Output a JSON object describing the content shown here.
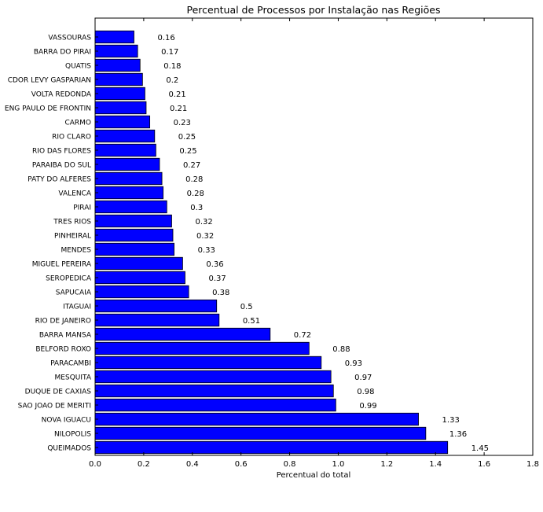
{
  "chart_data": {
    "type": "bar",
    "orientation": "horizontal",
    "title": "Percentual de Processos por Instalação nas Regiões",
    "xlabel": "Percentual do total",
    "ylabel": "",
    "xlim": [
      0,
      1.8
    ],
    "xticks": [
      "0.0",
      "0.2",
      "0.4",
      "0.6",
      "0.8",
      "1.0",
      "1.2",
      "1.4",
      "1.6",
      "1.8"
    ],
    "grid": false,
    "bar_color": "#0000ff",
    "categories": [
      "VASSOURAS",
      "BARRA DO PIRAI",
      "QUATIS",
      "CDOR LEVY GASPARIAN",
      "VOLTA REDONDA",
      "ENG PAULO DE FRONTIN",
      "CARMO",
      "RIO CLARO",
      "RIO DAS FLORES",
      "PARAIBA DO SUL",
      "PATY DO ALFERES",
      "VALENCA",
      "PIRAI",
      "TRES RIOS",
      "PINHEIRAL",
      "MENDES",
      "MIGUEL PEREIRA",
      "SEROPEDICA",
      "SAPUCAIA",
      "ITAGUAI",
      "RIO DE JANEIRO",
      "BARRA MANSA",
      "BELFORD ROXO",
      "PARACAMBI",
      "MESQUITA",
      "DUQUE DE CAXIAS",
      "SAO JOAO DE MERITI",
      "NOVA IGUACU",
      "NILOPOLIS",
      "QUEIMADOS"
    ],
    "values": [
      0.16,
      0.175,
      0.185,
      0.195,
      0.205,
      0.21,
      0.225,
      0.245,
      0.25,
      0.265,
      0.275,
      0.28,
      0.295,
      0.315,
      0.32,
      0.325,
      0.36,
      0.37,
      0.385,
      0.5,
      0.51,
      0.72,
      0.88,
      0.93,
      0.97,
      0.98,
      0.99,
      1.33,
      1.36,
      1.45
    ],
    "value_labels": [
      "0.16",
      "0.17",
      "0.18",
      "0.2",
      "0.21",
      "0.21",
      "0.23",
      "0.25",
      "0.25",
      "0.27",
      "0.28",
      "0.28",
      "0.3",
      "0.32",
      "0.32",
      "0.33",
      "0.36",
      "0.37",
      "0.38",
      "0.5",
      "0.51",
      "0.72",
      "0.88",
      "0.93",
      "0.97",
      "0.98",
      "0.99",
      "1.33",
      "1.36",
      "1.45"
    ]
  }
}
